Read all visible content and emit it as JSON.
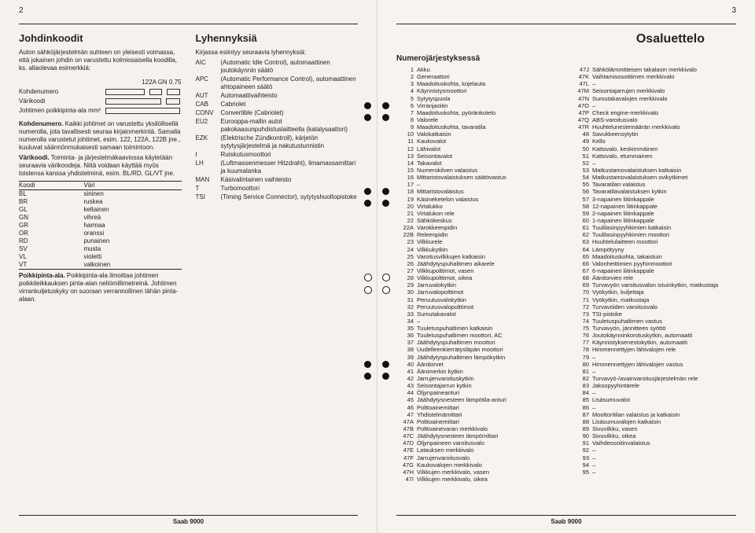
{
  "pageLeft": "2",
  "pageRight": "3",
  "footer": "Saab 9000",
  "left": {
    "h1": "Johdinkoodit",
    "intro": "Auton sähköjärjestelmän suhteen on yleisesti voimassa, että jokainen johdin on varustettu kolmiosaisella koodilla, ks. allaolevaa esimerkkiä:",
    "diagram": {
      "vals": "122A   GN   0.75",
      "r1": "Kohdenumero",
      "r2": "Värikoodi",
      "r3": "Johtimen poikkipinta-ala mm²"
    },
    "p_kohde_b": "Kohdenumero.",
    "p_kohde": " Kaikki johtimet on varustettu yksilöllisellä numerolla, jota tavallisesti seuraa kirjainmerkintä. Samalla numerolla varustetut johtimet, esim. 122, 122A, 122B jne., kuuluvat säännönmukaisesti samaan toimintoon.",
    "p_vari_b": "Värikoodi.",
    "p_vari": " Toiminta- ja järjestelmäkaaviossa käytetään seuraavia värikoodeja. Niitä voidaan käyttää myös toistensa kanssa yhdistelminä, esim. BL/RD, GL/VT jne.",
    "colorsHdr": [
      "Koodi",
      "Väri"
    ],
    "colors": [
      [
        "BL",
        "sininen"
      ],
      [
        "BR",
        "ruskea"
      ],
      [
        "GL",
        "keltainen"
      ],
      [
        "GN",
        "vihreä"
      ],
      [
        "GR",
        "harmaa"
      ],
      [
        "OR",
        "oranssi"
      ],
      [
        "RD",
        "punainen"
      ],
      [
        "SV",
        "musta"
      ],
      [
        "VL",
        "violetti"
      ],
      [
        "VT",
        "valkoinen"
      ]
    ],
    "p_poikki_b": "Poikkipinta-ala.",
    "p_poikki": " Poikkipinta-ala ilmoittaa johtimen poikkileikkauksen pinta-alan neliömillimetreinä. Johtimen virrankuljetuskyky on suoraan verrannollinen tähän pinta-alaan.",
    "h2": "Lyhennyksiä",
    "intro2": "Kirjassa esiintyy seuraavia lyhennyksiä:",
    "abbr": [
      [
        "AIC",
        "(Automatic Idle Control), automaattinen joutokäynnin säätö"
      ],
      [
        "APC",
        "(Automatic Performance Control), automaattinen ahtopaineen säätö"
      ],
      [
        "AUT",
        "Automaattivaihteisto"
      ],
      [
        "CAB",
        "Cabriolet"
      ],
      [
        "CONV",
        "Convertible (Cabriolet)"
      ],
      [
        "EU2",
        "Eurooppa-mallin autot pakokaasunpuhdistuslaitteella (katalysaattori)"
      ],
      [
        "EZK",
        "(Elektrische Zündkontroll), kärjetön sytytysjärjestelmä ja nakutustunnistin"
      ],
      [
        "I",
        "Ruiskutusmoottori"
      ],
      [
        "LH",
        "(Luftmassenmesser Hitzdraht), ilmamassamittari ja kuumalanka"
      ],
      [
        "MAN",
        "Käsivalintainen vaihteisto"
      ],
      [
        "T",
        "Turbomoottori"
      ],
      [
        "TSI",
        "(Timing Service Connector), sytytyshuoltopistoke"
      ]
    ]
  },
  "right": {
    "h1": "Osaluettelo",
    "sub": "Numerojärjestyksessä",
    "items": [
      [
        "1",
        "Akku"
      ],
      [
        "2",
        "Generaattori"
      ],
      [
        "3",
        "Maadoituskohta, kojelauta"
      ],
      [
        "4",
        "Käynnistysmoottori"
      ],
      [
        "5",
        "Sytytyspuola"
      ],
      [
        "6",
        "Virranjaoitin"
      ],
      [
        "7",
        "Maadoituskohta, pyöränkotelo"
      ],
      [
        "8",
        "Valorele"
      ],
      [
        "9",
        "Maadoituskohta, tavaratila"
      ],
      [
        "10",
        "Valokatkaisin"
      ],
      [
        "11",
        "Kaukovalot"
      ],
      [
        "12",
        "Lähivalot"
      ],
      [
        "13",
        "Seisontavalot"
      ],
      [
        "14",
        "Takavalot"
      ],
      [
        "15",
        "Numerokilven valaistus"
      ],
      [
        "16",
        "Mittaristovalaistuksen säätövastus"
      ],
      [
        "17",
        "–"
      ],
      [
        "18",
        "Mittaristovalaistus"
      ],
      [
        "19",
        "Käsineketelon valaistus"
      ],
      [
        "20",
        "Virtalukko"
      ],
      [
        "21",
        "Virtalukon rele"
      ],
      [
        "22",
        "Sähkökeskus"
      ],
      [
        "22A",
        "Varokkeenpidin"
      ],
      [
        "22B",
        "Releenpidin"
      ],
      [
        "23",
        "Vilkkurele"
      ],
      [
        "24",
        "Vilkkukytkin"
      ],
      [
        "25",
        "Varoitusvilkkujen katkaisin"
      ],
      [
        "26",
        "Jäähdytyspuhaltimen aikarele"
      ],
      [
        "27",
        "Vilkkupolttimot, vasen"
      ],
      [
        "28",
        "Vilkkupolttimot, oikea"
      ],
      [
        "29",
        "Jarruvalokytkin"
      ],
      [
        "30",
        "Jarruvalopolttimot"
      ],
      [
        "31",
        "Peruutusvalokytkin"
      ],
      [
        "32",
        "Peruutusvalopolttimot"
      ],
      [
        "33",
        "Sumutakavalot"
      ],
      [
        "34",
        "–"
      ],
      [
        "35",
        "Tuuletuspuhaltimen katkaisin"
      ],
      [
        "36",
        "Tuuletuspuhaltimen moottori, AC"
      ],
      [
        "37",
        "Jäähdytyspuhaltimen moottori"
      ],
      [
        "38",
        "Uudelleenkierrätysläpän moottori"
      ],
      [
        "39",
        "Jäähdytyspuhaltimen lämpökytkin"
      ],
      [
        "40",
        "Äänitorvet"
      ],
      [
        "41",
        "Äänimerkin kytkin"
      ],
      [
        "42",
        "Jarrujenvaroituskytkin"
      ],
      [
        "43",
        "Seisontajarrun kytkin"
      ],
      [
        "44",
        "Öljynpaineanturi"
      ],
      [
        "45",
        "Jäähdytysnesteen lämpötila-anturi"
      ],
      [
        "46",
        "Polttoainemittari"
      ],
      [
        "47",
        "Yhdistelmämittari"
      ],
      [
        "47A",
        "Polttoainemittari"
      ],
      [
        "47B",
        "Polttoainevaran merkkivalo"
      ],
      [
        "47C",
        "Jäähdytysnesteen lämpömittari"
      ],
      [
        "47D",
        "Öljynpaineen varoitusvalo"
      ],
      [
        "47E",
        "Latauksen merkkivalo"
      ],
      [
        "47F",
        "Jarrujenvaroitusvalo"
      ],
      [
        "47G",
        "Kaukovalojen merkkivalo"
      ],
      [
        "47H",
        "Vilkkujen merkkivalo, vasen"
      ],
      [
        "47I",
        "Vilkkujen merkkivalo, oikea"
      ],
      [
        "47J",
        "Sähkölämmitteisen takalasin merkkivalo"
      ],
      [
        "47K",
        "Vaihtamisosoittimen merkkivalo"
      ],
      [
        "47L",
        "–"
      ],
      [
        "47M",
        "Seisontajarrujen merkkivalo"
      ],
      [
        "47N",
        "Sumutakavalojen merkkivalo"
      ],
      [
        "47O",
        "–"
      ],
      [
        "47P",
        "Check engine-merkkivalo"
      ],
      [
        "47Q",
        "ABS-varoitusvalo"
      ],
      [
        "47R",
        "Huuhtelunestemäärän merkkivalo"
      ],
      [
        "48",
        "Savukkeensytytin"
      ],
      [
        "49",
        "Kello"
      ],
      [
        "50",
        "Kattovalo, keskimmäinen"
      ],
      [
        "51",
        "Kattovalo, etummainen"
      ],
      [
        "52",
        "–"
      ],
      [
        "53",
        "Matkustamovalaistuksen katkaisin"
      ],
      [
        "54",
        "Matkustamovalaistuksen ovikytkimet"
      ],
      [
        "55",
        "Tavaratilan valaistus"
      ],
      [
        "56",
        "Tavaratilavalaistuksen kytkin"
      ],
      [
        "57",
        "3-napainen liitinkappale"
      ],
      [
        "58",
        "12-napainen liitinkappale"
      ],
      [
        "59",
        "2-napainen liitinkappale"
      ],
      [
        "60",
        "1-napainen liitinkappale"
      ],
      [
        "61",
        "Tuulilasinpyyhkimien katkaisin"
      ],
      [
        "62",
        "Tuulilasinpyyhkimien moottori"
      ],
      [
        "63",
        "Huuhtelulaitteen moottori"
      ],
      [
        "64",
        "Lämpötyyny"
      ],
      [
        "65",
        "Maadoituskohta, takaistuin"
      ],
      [
        "66",
        "Valonheittimien pyyhinmoottori"
      ],
      [
        "67",
        "6-napainen liitinkappale"
      ],
      [
        "68",
        "Äänitorvien rele"
      ],
      [
        "69",
        "Turvavyön varoitusvalon istuinkytkin, matkustaja"
      ],
      [
        "70",
        "Vyökytkin, kuljettaja"
      ],
      [
        "71",
        "Vyökytkin, matkustaja"
      ],
      [
        "72",
        "Turvavöiden varoitusvalo"
      ],
      [
        "73",
        "TSI-pistoke"
      ],
      [
        "74",
        "Tuuletuspuhaltimen vastus"
      ],
      [
        "75",
        "Turvavyön, jännitteen syöttö"
      ],
      [
        "76",
        "Joutokäynninkorotuskytkin, automaatti"
      ],
      [
        "77",
        "Käynnistyksenestokytkin, automaatti"
      ],
      [
        "78",
        "Himmennettyjen lähivalojen rele"
      ],
      [
        "79",
        "–"
      ],
      [
        "80",
        "Himmennettyjen lähivalojen vastus"
      ],
      [
        "81",
        "–"
      ],
      [
        "82",
        "Turvavyö-/avainvaroitusjärjestelmän rele"
      ],
      [
        "83",
        "Jaksopyyhintärele"
      ],
      [
        "84",
        "–"
      ],
      [
        "85",
        "Lisäsumuvalot"
      ],
      [
        "86",
        "–"
      ],
      [
        "87",
        "Moottoritilan valaistus ja katkaisin"
      ],
      [
        "88",
        "Lisäsumuvalojen katkaisin"
      ],
      [
        "89",
        "Sivuvilkku, vasen"
      ],
      [
        "90",
        "Sivuvilkku, oikea"
      ],
      [
        "91",
        "Vaihdeosoitinvalaistus"
      ],
      [
        "92",
        "–"
      ],
      [
        "93",
        "–"
      ],
      [
        "94",
        "–"
      ],
      [
        "95",
        "–"
      ]
    ]
  }
}
